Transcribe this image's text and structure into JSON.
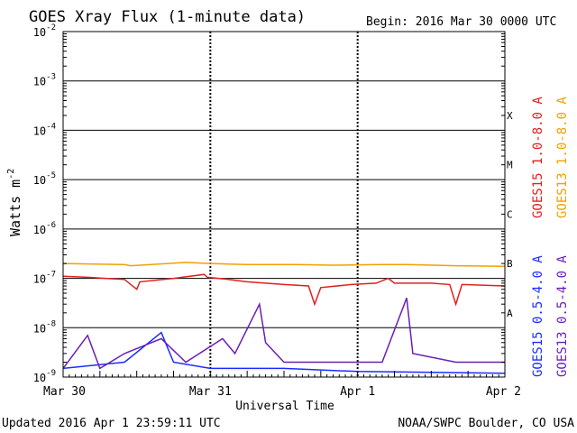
{
  "header": {
    "title": "GOES Xray Flux (1-minute data)",
    "begin": "Begin:  2016 Mar 30 0000 UTC"
  },
  "footer": {
    "updated": "Updated 2016 Apr  1 23:59:11 UTC",
    "credit": "NOAA/SWPC Boulder, CO USA"
  },
  "chart_data": {
    "type": "line",
    "title": "GOES Xray Flux (1-minute data)",
    "xlabel": "Universal Time",
    "ylabel": "Watts m",
    "ylabel_superscript": "-2",
    "yscale": "log",
    "ylim": [
      1e-09,
      0.01
    ],
    "y_ticks": [
      {
        "base": "10",
        "exp": "-2",
        "value": 0.01
      },
      {
        "base": "10",
        "exp": "-3",
        "value": 0.001
      },
      {
        "base": "10",
        "exp": "-4",
        "value": 0.0001
      },
      {
        "base": "10",
        "exp": "-5",
        "value": 1e-05
      },
      {
        "base": "10",
        "exp": "-6",
        "value": 1e-06
      },
      {
        "base": "10",
        "exp": "-7",
        "value": 1e-07
      },
      {
        "base": "10",
        "exp": "-8",
        "value": 1e-08
      },
      {
        "base": "10",
        "exp": "-9",
        "value": 1e-09
      }
    ],
    "x_ticks": [
      "Mar 30",
      "Mar 31",
      "Apr 1",
      "Apr 2"
    ],
    "xlim": [
      "2016-03-30 00:00",
      "2016-04-02 00:00"
    ],
    "flare_classes": [
      {
        "label": "X",
        "value": 0.0002
      },
      {
        "label": "M",
        "value": 2e-05
      },
      {
        "label": "C",
        "value": 2e-06
      },
      {
        "label": "B",
        "value": 2e-07
      },
      {
        "label": "A",
        "value": 2e-08
      }
    ],
    "grid": true,
    "legend_position": "right",
    "series": [
      {
        "name": "GOES15 1.0-8.0 A",
        "color": "#e02020",
        "points": [
          [
            "2016-03-30 00:00",
            1.1e-07
          ],
          [
            "2016-03-30 04:00",
            1.05e-07
          ],
          [
            "2016-03-30 10:00",
            9.5e-08
          ],
          [
            "2016-03-30 12:00",
            6e-08
          ],
          [
            "2016-03-30 12:30",
            8.5e-08
          ],
          [
            "2016-03-30 18:00",
            1e-07
          ],
          [
            "2016-03-30 23:00",
            1.2e-07
          ],
          [
            "2016-03-30 23:30",
            1.05e-07
          ],
          [
            "2016-03-31 03:00",
            9.5e-08
          ],
          [
            "2016-03-31 06:00",
            8.5e-08
          ],
          [
            "2016-03-31 12:00",
            7.5e-08
          ],
          [
            "2016-03-31 16:00",
            7e-08
          ],
          [
            "2016-03-31 17:00",
            3e-08
          ],
          [
            "2016-03-31 18:00",
            6.5e-08
          ],
          [
            "2016-03-31 23:00",
            7.5e-08
          ],
          [
            "2016-04-01 03:00",
            8e-08
          ],
          [
            "2016-04-01 05:00",
            1e-07
          ],
          [
            "2016-04-01 06:00",
            8e-08
          ],
          [
            "2016-04-01 12:00",
            8e-08
          ],
          [
            "2016-04-01 15:00",
            7.5e-08
          ],
          [
            "2016-04-01 16:00",
            3e-08
          ],
          [
            "2016-04-01 17:00",
            7.5e-08
          ],
          [
            "2016-04-02 00:00",
            7e-08
          ]
        ]
      },
      {
        "name": "GOES13 1.0-8.0 A",
        "color": "#f0a000",
        "points": [
          [
            "2016-03-30 00:00",
            2e-07
          ],
          [
            "2016-03-30 10:00",
            1.9e-07
          ],
          [
            "2016-03-30 11:00",
            1.8e-07
          ],
          [
            "2016-03-30 20:00",
            2.1e-07
          ],
          [
            "2016-03-31 00:00",
            2e-07
          ],
          [
            "2016-03-31 06:00",
            1.9e-07
          ],
          [
            "2016-03-31 14:00",
            1.9e-07
          ],
          [
            "2016-03-31 20:00",
            1.85e-07
          ],
          [
            "2016-04-01 04:00",
            1.9e-07
          ],
          [
            "2016-04-01 08:00",
            1.9e-07
          ],
          [
            "2016-04-01 16:00",
            1.8e-07
          ],
          [
            "2016-04-02 00:00",
            1.75e-07
          ]
        ]
      },
      {
        "name": "GOES15 0.5-4.0 A",
        "color": "#1a2cff",
        "points": [
          [
            "2016-03-30 00:00",
            1.5e-09
          ],
          [
            "2016-03-30 10:00",
            2e-09
          ],
          [
            "2016-03-30 16:00",
            8e-09
          ],
          [
            "2016-03-30 18:00",
            2e-09
          ],
          [
            "2016-03-31 00:00",
            1.5e-09
          ],
          [
            "2016-03-31 12:00",
            1.5e-09
          ],
          [
            "2016-04-01 00:00",
            1.3e-09
          ],
          [
            "2016-04-02 00:00",
            1.2e-09
          ]
        ]
      },
      {
        "name": "GOES13 0.5-4.0 A",
        "color": "#6a1fb8",
        "points": [
          [
            "2016-03-30 00:00",
            1.5e-09
          ],
          [
            "2016-03-30 04:00",
            7e-09
          ],
          [
            "2016-03-30 06:00",
            1.5e-09
          ],
          [
            "2016-03-30 10:00",
            3e-09
          ],
          [
            "2016-03-30 16:00",
            6e-09
          ],
          [
            "2016-03-30 20:00",
            2e-09
          ],
          [
            "2016-03-31 02:00",
            6e-09
          ],
          [
            "2016-03-31 04:00",
            3e-09
          ],
          [
            "2016-03-31 08:00",
            3e-08
          ],
          [
            "2016-03-31 09:00",
            5e-09
          ],
          [
            "2016-03-31 12:00",
            2e-09
          ],
          [
            "2016-03-31 18:00",
            2e-09
          ],
          [
            "2016-04-01 04:00",
            2e-09
          ],
          [
            "2016-04-01 08:00",
            4e-08
          ],
          [
            "2016-04-01 09:00",
            3e-09
          ],
          [
            "2016-04-01 16:00",
            2e-09
          ],
          [
            "2016-04-02 00:00",
            2e-09
          ]
        ]
      }
    ]
  }
}
